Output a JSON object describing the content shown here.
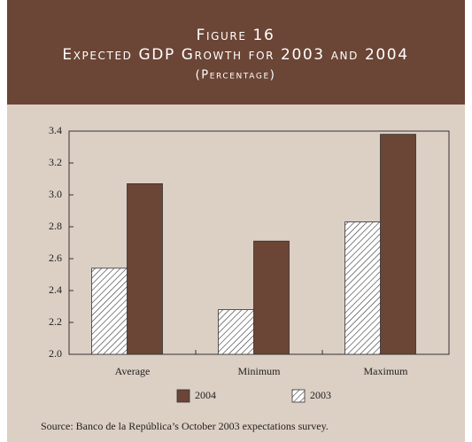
{
  "chart_data": {
    "type": "bar",
    "title": "Figure 16",
    "subtitle": "Expected GDP Growth for 2003 and 2004",
    "unit_label": "(Percentage)",
    "categories": [
      "Average",
      "Minimum",
      "Maximum"
    ],
    "series": [
      {
        "name": "2004",
        "color": "#6b4535",
        "values": [
          3.07,
          2.71,
          3.38
        ]
      },
      {
        "name": "2003",
        "color": "#ffffff",
        "pattern": "hatch",
        "values": [
          2.54,
          2.28,
          2.83
        ]
      }
    ],
    "ylim": [
      2.0,
      3.4
    ],
    "yticks": [
      {
        "value": 2.0,
        "label": "2.0"
      },
      2.2,
      2.4,
      2.6,
      2.8,
      {
        "value": 3.0,
        "label": "3.0"
      },
      3.2,
      3.4
    ],
    "grid": false,
    "source": "Source: Banco de la República’s October 2003 expectations survey."
  }
}
